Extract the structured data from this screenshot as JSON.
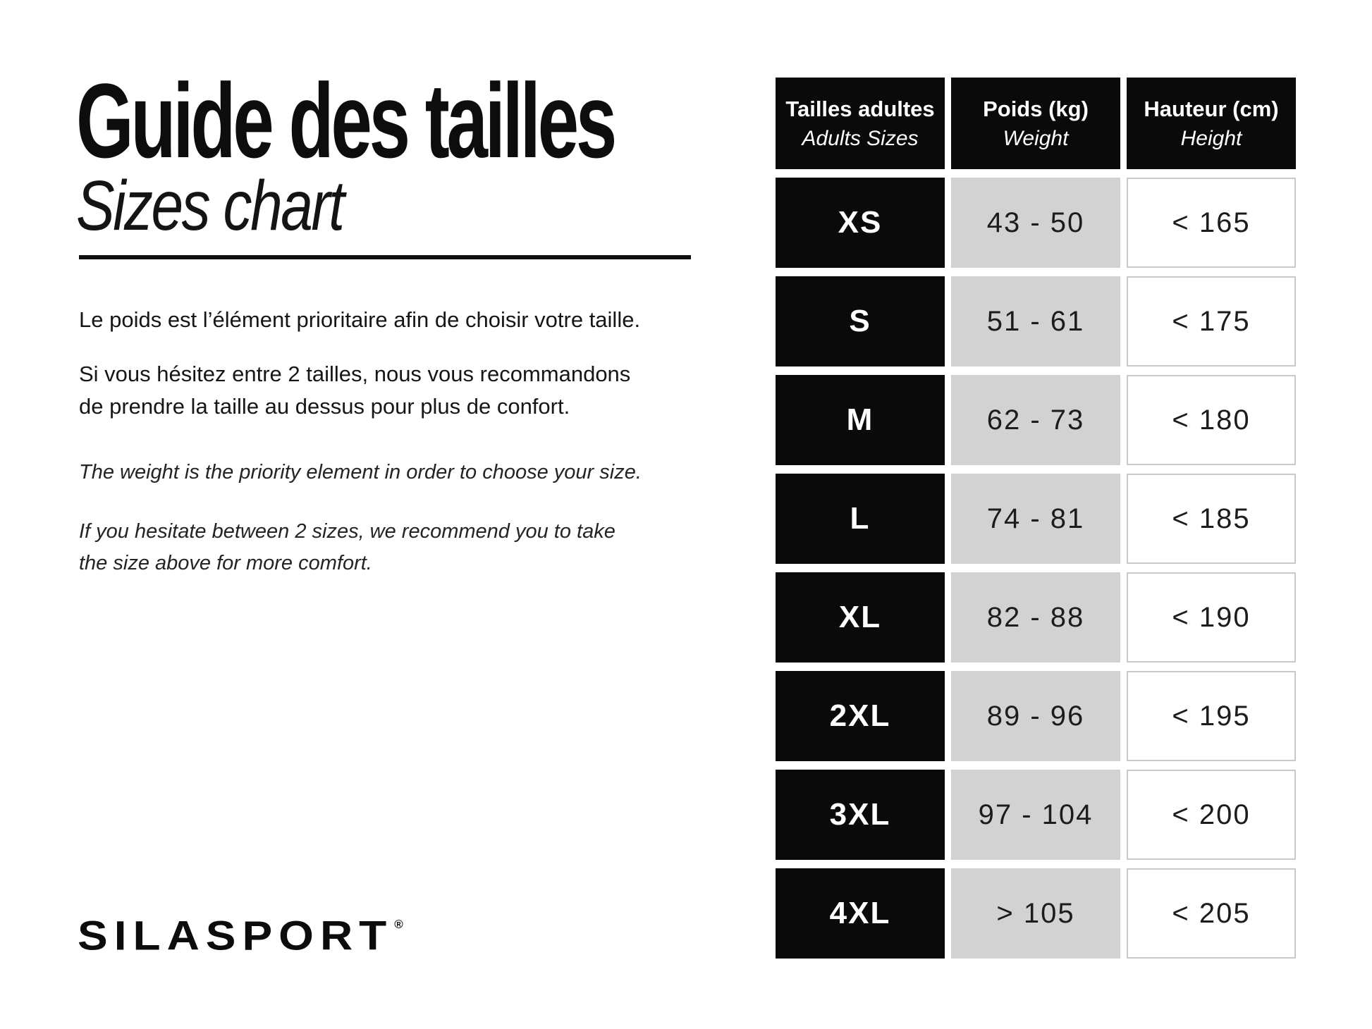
{
  "page": {
    "title_fr": "Guide des tailles",
    "title_en": "Sizes chart"
  },
  "intro": {
    "fr_1": "Le poids est l’élément prioritaire afin de choisir votre taille.",
    "fr_2": [
      "Si vous hésitez entre 2 tailles, nous vous recommandons",
      "de prendre la taille au dessus pour plus de confort."
    ],
    "en_1": "The weight is the priority element in order to choose your size.",
    "en_2": [
      "If you hesitate between 2 sizes, we recommend you to take",
      "the size above for more comfort."
    ]
  },
  "table": {
    "header": {
      "sizes": {
        "fr": "Tailles adultes",
        "en": "Adults Sizes"
      },
      "weight": {
        "fr": "Poids (kg)",
        "en": "Weight"
      },
      "height": {
        "fr": "Hauteur (cm)",
        "en": "Height"
      }
    },
    "rows": [
      {
        "size": "XS",
        "weight": "43 - 50",
        "height": "< 165"
      },
      {
        "size": "S",
        "weight": "51 - 61",
        "height": "< 175"
      },
      {
        "size": "M",
        "weight": "62 - 73",
        "height": "< 180"
      },
      {
        "size": "L",
        "weight": "74 - 81",
        "height": "< 185"
      },
      {
        "size": "XL",
        "weight": "82 - 88",
        "height": "< 190"
      },
      {
        "size": "2XL",
        "weight": "89 - 96",
        "height": "< 195"
      },
      {
        "size": "3XL",
        "weight": "97 - 104",
        "height": "< 200"
      },
      {
        "size": "4XL",
        "weight": "> 105",
        "height": "< 205"
      }
    ]
  },
  "brand": {
    "logo_text": "SILASPORT",
    "registered_mark": "®"
  },
  "colors": {
    "cell_black": "#0a0a0a",
    "cell_gray": "#d2d2d2",
    "cell_border": "#c9c9c9",
    "text": "#141414",
    "background": "#ffffff"
  }
}
